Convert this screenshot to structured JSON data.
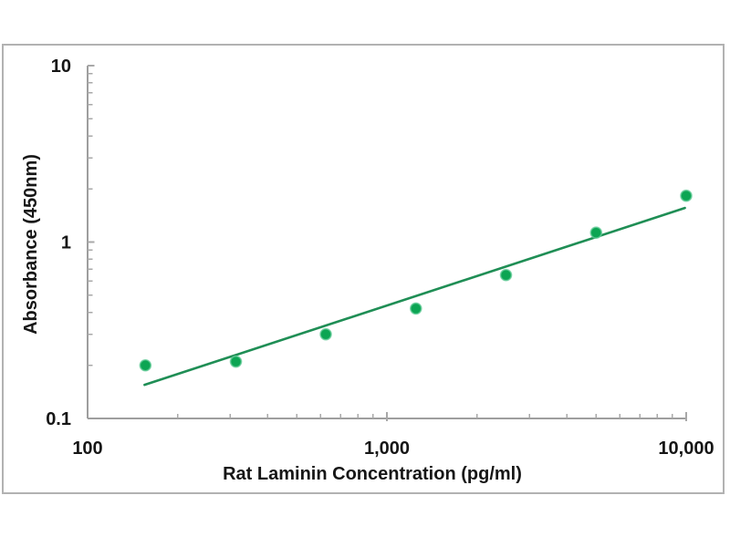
{
  "figure": {
    "background": "#ffffff",
    "frame_border_color": "#b2b2b2"
  },
  "chart_data": {
    "type": "scatter",
    "title": "",
    "xlabel": "Rat Laminin Concentration (pg/ml)",
    "ylabel": "Absorbance (450nm)",
    "x_scale": "log",
    "y_scale": "log",
    "xlim": [
      100,
      10000
    ],
    "ylim": [
      0.1,
      10
    ],
    "grid": false,
    "legend": false,
    "x_ticks": [
      {
        "value": 100,
        "label": "100"
      },
      {
        "value": 1000,
        "label": "1,000"
      },
      {
        "value": 10000,
        "label": "10,000"
      }
    ],
    "y_ticks": [
      {
        "value": 0.1,
        "label": "0.1"
      },
      {
        "value": 1,
        "label": "1"
      },
      {
        "value": 10,
        "label": "10"
      }
    ],
    "series": [
      {
        "name": "standard-points",
        "marker": "circle",
        "x": [
          156,
          313,
          625,
          1250,
          2500,
          5000,
          10000
        ],
        "y": [
          0.2,
          0.21,
          0.3,
          0.42,
          0.65,
          1.13,
          1.83
        ]
      }
    ],
    "trendline": {
      "x1": 155,
      "y1": 0.155,
      "x2": 9900,
      "y2": 1.56
    },
    "colors": {
      "marker": "#0ca553",
      "marker_halo": "#66cc99",
      "trendline": "#1f8e55",
      "axis": "#9e9e9e",
      "tick": "#a8a8a8",
      "text": "#161616"
    }
  }
}
